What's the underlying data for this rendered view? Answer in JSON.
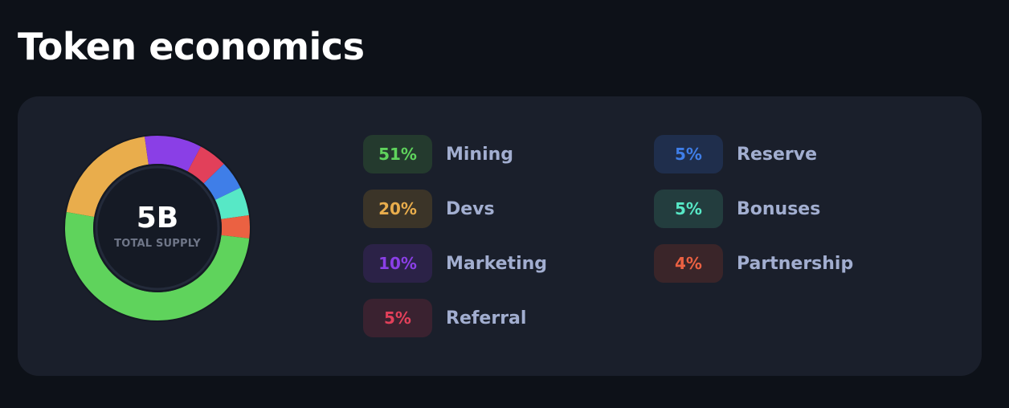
{
  "header": {
    "title": "Token economics"
  },
  "supply": {
    "value": "5B",
    "label": "TOTAL SUPPLY"
  },
  "allocations": [
    {
      "percent_label": "51%",
      "percent": 51,
      "name": "Mining",
      "color": "#5fd35c",
      "badge_bg": "#243a2e"
    },
    {
      "percent_label": "20%",
      "percent": 20,
      "name": "Devs",
      "color": "#e9ad4c",
      "badge_bg": "#3b3428"
    },
    {
      "percent_label": "10%",
      "percent": 10,
      "name": "Marketing",
      "color": "#8a3fe6",
      "badge_bg": "#2b2247"
    },
    {
      "percent_label": "5%",
      "percent": 5,
      "name": "Referral",
      "color": "#e2405a",
      "badge_bg": "#3a2230"
    },
    {
      "percent_label": "5%",
      "percent": 5,
      "name": "Reserve",
      "color": "#3f7ee8",
      "badge_bg": "#1f2e4c"
    },
    {
      "percent_label": "5%",
      "percent": 5,
      "name": "Bonuses",
      "color": "#57e8c6",
      "badge_bg": "#233d3e"
    },
    {
      "percent_label": "4%",
      "percent": 4,
      "name": "Partnership",
      "color": "#eb6142",
      "badge_bg": "#3a2529"
    }
  ]
}
